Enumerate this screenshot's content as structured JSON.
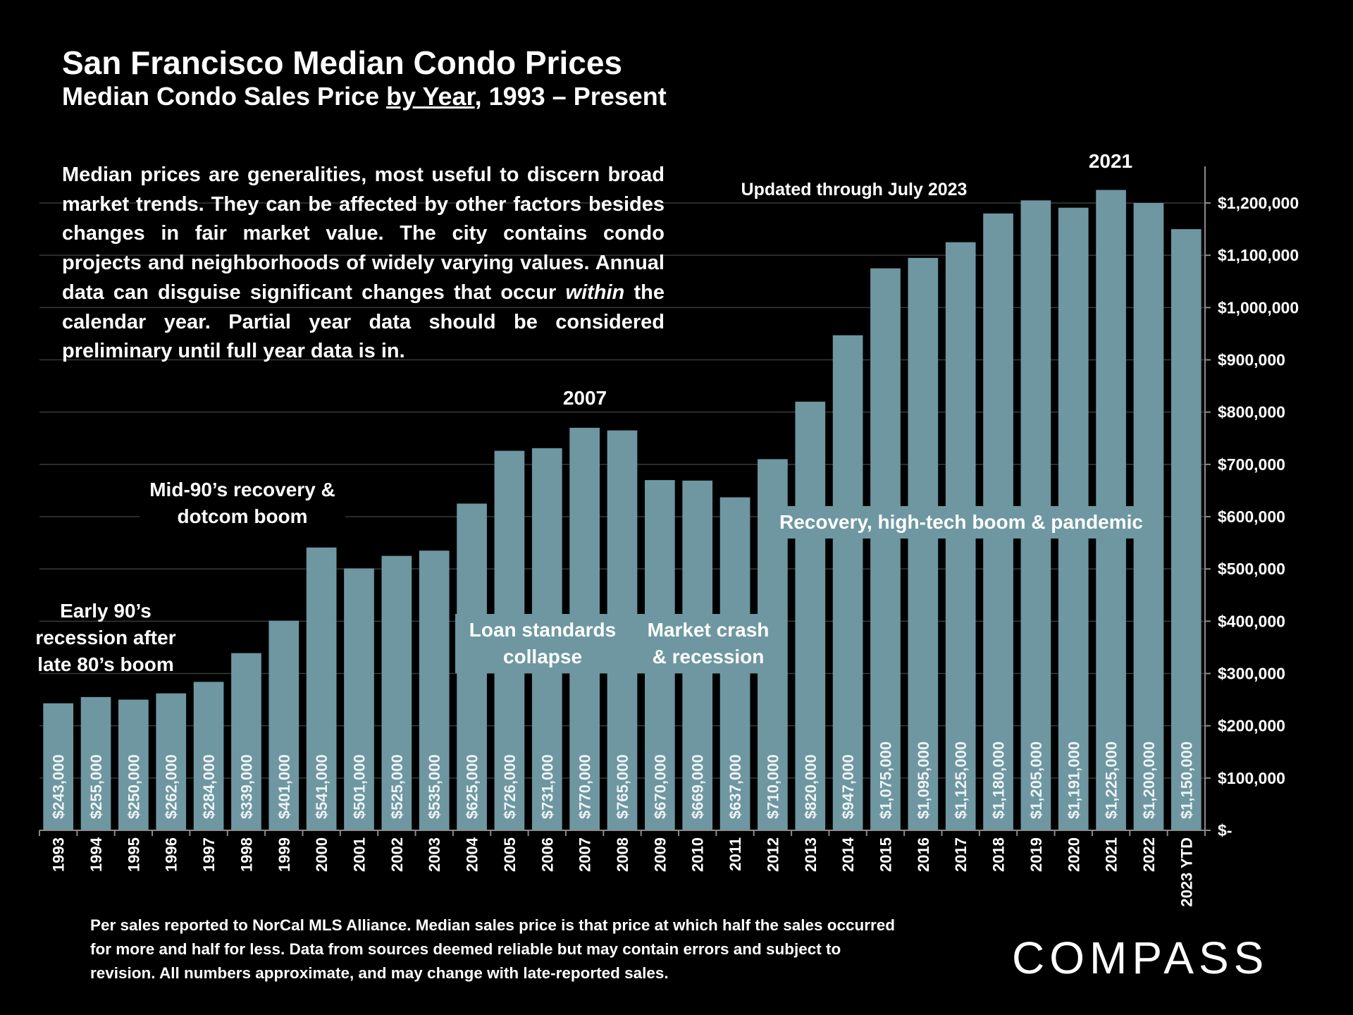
{
  "header": {
    "title": "San Francisco Median Condo Prices",
    "subtitle_pre": "Median Condo Sales Price ",
    "subtitle_underlined": "by Year",
    "subtitle_post": ", 1993 – Present"
  },
  "description": {
    "part1": "Median prices are generalities, most useful to discern broad market trends. They can be affected by other factors besides changes in fair market value. The city contains condo projects and neighborhoods of widely varying values. Annual data can disguise significant changes that occur ",
    "italic": "within",
    "part2": " the calendar year. Partial year data should be considered preliminary until full year data is in."
  },
  "annotations": {
    "early90s": "Early 90’s recession after late 80’s boom",
    "mid90s": "Mid-90’s recovery & dotcom boom",
    "loan": "Loan standards collapse",
    "crash": "Market crash & recession",
    "recovery": "Recovery, high-tech boom & pandemic",
    "peak2007": "2007",
    "peak2021": "2021",
    "updated": "Updated through July 2023"
  },
  "chart_data": {
    "type": "bar",
    "categories": [
      "1993",
      "1994",
      "1995",
      "1996",
      "1997",
      "1998",
      "1999",
      "2000",
      "2001",
      "2002",
      "2003",
      "2004",
      "2005",
      "2006",
      "2007",
      "2008",
      "2009",
      "2010",
      "2011",
      "2012",
      "2013",
      "2014",
      "2015",
      "2016",
      "2017",
      "2018",
      "2019",
      "2020",
      "2021",
      "2022",
      "2023 YTD"
    ],
    "values": [
      243000,
      255000,
      250000,
      262000,
      284000,
      339000,
      401000,
      541000,
      501000,
      525000,
      535000,
      625000,
      726000,
      731000,
      770000,
      765000,
      670000,
      669000,
      637000,
      710000,
      820000,
      947000,
      1075000,
      1095000,
      1125000,
      1180000,
      1205000,
      1191000,
      1225000,
      1200000,
      1150000
    ],
    "data_labels": [
      "$243,000",
      "$255,000",
      "$250,000",
      "$262,000",
      "$284,000",
      "$339,000",
      "$401,000",
      "$541,000",
      "$501,000",
      "$525,000",
      "$535,000",
      "$625,000",
      "$726,000",
      "$731,000",
      "$770,000",
      "$765,000",
      "$670,000",
      "$669,000",
      "$637,000",
      "$710,000",
      "$820,000",
      "$947,000",
      "$1,075,000",
      "$1,095,000",
      "$1,125,000",
      "$1,180,000",
      "$1,205,000",
      "$1,191,000",
      "$1,225,000",
      "$1,200,000",
      "$1,150,000"
    ],
    "ylim": [
      0,
      1200000
    ],
    "yticks": [
      0,
      100000,
      200000,
      300000,
      400000,
      500000,
      600000,
      700000,
      800000,
      900000,
      1000000,
      1100000,
      1200000
    ],
    "ytick_labels": [
      "$-",
      "$100,000",
      "$200,000",
      "$300,000",
      "$400,000",
      "$500,000",
      "$600,000",
      "$700,000",
      "$800,000",
      "$900,000",
      "$1,000,000",
      "$1,100,000",
      "$1,200,000"
    ],
    "y_axis_position": "right",
    "grid": true,
    "bar_color": "#6e97a1"
  },
  "footnote": "Per sales reported to NorCal MLS Alliance. Median sales price is that price at which half the sales occurred for more and half for less. Data from sources deemed reliable but may contain errors and subject to revision. All numbers approximate, and may change with late-reported sales.",
  "brand": {
    "logo_text": "COMPASS"
  }
}
